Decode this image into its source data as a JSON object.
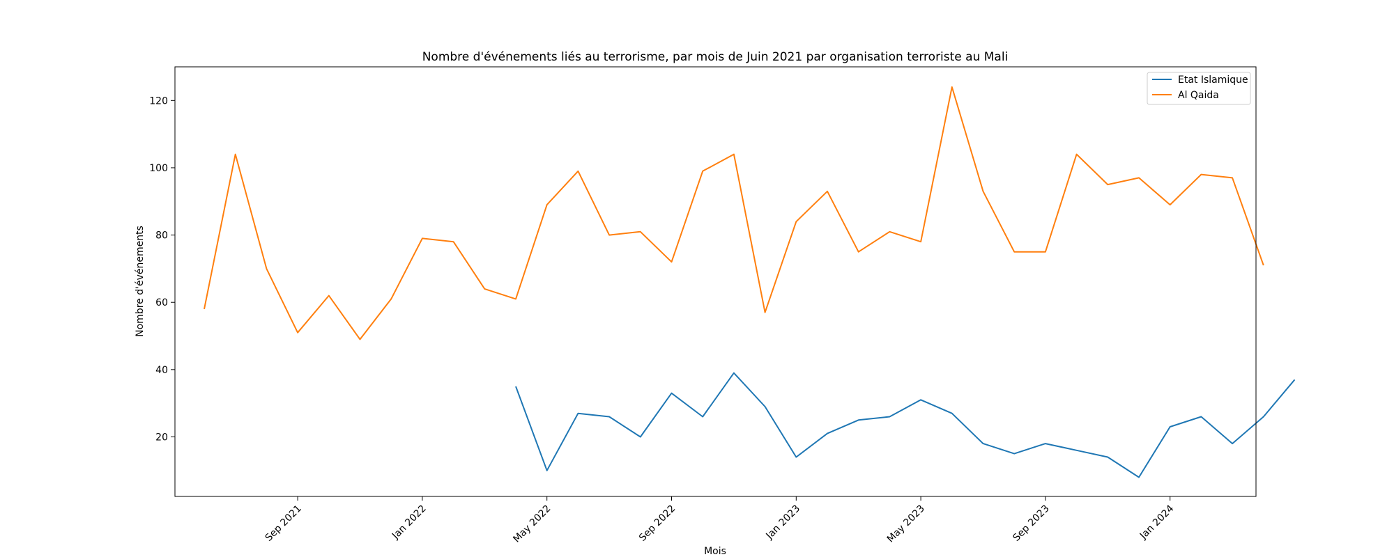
{
  "chart_data": {
    "type": "line",
    "title": "Nombre d'événements liés au terrorisme, par mois de Juin 2021 par organisation terroriste au Mali",
    "xlabel": "Mois",
    "ylabel": "Nombre d'événements",
    "x": [
      "2021-06",
      "2021-07",
      "2021-08",
      "2021-09",
      "2021-10",
      "2021-11",
      "2021-12",
      "2022-01",
      "2022-02",
      "2022-03",
      "2022-04",
      "2022-05",
      "2022-06",
      "2022-07",
      "2022-08",
      "2022-09",
      "2022-10",
      "2022-11",
      "2022-12",
      "2023-01",
      "2023-02",
      "2023-03",
      "2023-04",
      "2023-05",
      "2023-06",
      "2023-07",
      "2023-08",
      "2023-09",
      "2023-10",
      "2023-11",
      "2023-12",
      "2024-01",
      "2024-02",
      "2024-03",
      "2024-04",
      "2024-05"
    ],
    "x_tick_labels": [
      "Sep 2021",
      "Jan 2022",
      "May 2022",
      "Sep 2022",
      "Jan 2023",
      "May 2023",
      "Sep 2023",
      "Jan 2024"
    ],
    "x_tick_dates": [
      "2021-09",
      "2022-01",
      "2022-05",
      "2022-09",
      "2023-01",
      "2023-05",
      "2023-09",
      "2024-01"
    ],
    "y_ticks": [
      20,
      40,
      60,
      80,
      100,
      120
    ],
    "ylim": [
      2.3,
      130
    ],
    "grid": false,
    "legend_position": "upper right",
    "series": [
      {
        "name": "Etat Islamique",
        "color": "#1f77b4",
        "values": [
          null,
          null,
          null,
          null,
          null,
          null,
          null,
          null,
          null,
          null,
          35,
          10,
          27,
          26,
          20,
          33,
          26,
          39,
          29,
          14,
          21,
          25,
          26,
          31,
          27,
          18,
          15,
          18,
          16,
          14,
          8,
          23,
          26,
          18,
          26,
          37
        ]
      },
      {
        "name": "Al Qaida",
        "color": "#ff7f0e",
        "values": [
          58,
          104,
          70,
          51,
          62,
          49,
          61,
          79,
          78,
          64,
          61,
          89,
          99,
          80,
          81,
          72,
          99,
          104,
          57,
          84,
          93,
          75,
          81,
          78,
          124,
          93,
          75,
          75,
          104,
          95,
          97,
          89,
          98,
          97,
          71,
          null
        ]
      }
    ]
  }
}
